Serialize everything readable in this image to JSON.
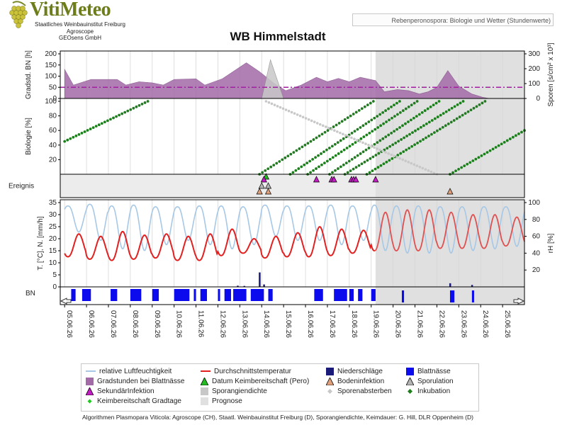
{
  "header": {
    "logo_name": "VitiMeteo",
    "institute_lines": [
      "Staatliches Weinbauinstitut Freiburg",
      "Agroscope",
      "GEOsens GmbH"
    ],
    "info_box": "Rebenperonospora: Biologie und Wetter (Stundenwerte)",
    "station": "WB Himmelstadt"
  },
  "footer": "Algorithmen Plasmopara Viticola: Agroscope (CH), Staatl. Weinbauinstitut Freiburg (D), Sporangiendichte, Keimdauer: G. Hill, DLR Oppenheim (D)",
  "colors": {
    "humidity": "#a6c8e6",
    "temperature": "#e32020",
    "rain": "#1a1a78",
    "leafwet": "#0b0bee",
    "gradstd": "#a36aa8",
    "sporangia": "#c8c8c8",
    "incubation": "#1e7e1e",
    "secondary": "#c41bc4",
    "soil": "#e0a07c",
    "sporulation": "#b4b4b4",
    "forecast": "#e0e0e0",
    "threshold": "#a020a0"
  },
  "legend": [
    {
      "key": "rh",
      "label": "relative Luftfeuchtigkeit"
    },
    {
      "key": "temp",
      "label": "Durchschnittstemperatur"
    },
    {
      "key": "rain",
      "label": "Niederschläge"
    },
    {
      "key": "leafwet",
      "label": "Blattnässe"
    },
    {
      "key": "gradstd",
      "label": "Gradstunden bei Blattnässe"
    },
    {
      "key": "keimdate",
      "label": "Datum Keimbereitschaft (Pero)"
    },
    {
      "key": "soil",
      "label": "Bodeninfektion"
    },
    {
      "key": "sporulation",
      "label": "Sporulation"
    },
    {
      "key": "secondary",
      "label": "SekundärInfektion"
    },
    {
      "key": "sporangia",
      "label": "Sporangiendichte"
    },
    {
      "key": "sporedeath",
      "label": "Sporenabsterben"
    },
    {
      "key": "incubation",
      "label": "Inkubation"
    },
    {
      "key": "keimgrad",
      "label": "Keimbereitschaft Gradtage"
    },
    {
      "key": "forecast",
      "label": "Prognose"
    }
  ],
  "chart_data": {
    "type": "line",
    "dates": [
      "05.06.26",
      "06.06.26",
      "07.06.26",
      "08.06.26",
      "09.06.26",
      "10.06.26",
      "11.06.26",
      "12.06.26",
      "13.06.26",
      "14.06.26",
      "15.06.26",
      "16.06.26",
      "17.06.26",
      "18.06.26",
      "19.06.26",
      "20.06.26",
      "21.06.26",
      "22.06.26",
      "23.06.26",
      "24.06.26",
      "25.06.26"
    ],
    "forecast_start_day": 18.2,
    "panels": {
      "gradstunden": {
        "ylabel_left": "Gradstd. BN [h]",
        "ylim_left": [
          0,
          200
        ],
        "ticks_left": [
          "0",
          "50",
          "100",
          "150",
          "200"
        ],
        "ylabel_right": "Sporen [s/cm² x 10³]",
        "ylim_right": [
          0,
          300
        ],
        "ticks_right": [
          "0",
          "100",
          "200",
          "300"
        ],
        "threshold": 50,
        "gradstunden_series": [
          [
            4.0,
            130
          ],
          [
            4.4,
            60
          ],
          [
            5.2,
            85
          ],
          [
            6.4,
            85
          ],
          [
            6.8,
            60
          ],
          [
            7.4,
            75
          ],
          [
            8.0,
            70
          ],
          [
            8.5,
            60
          ],
          [
            9.0,
            85
          ],
          [
            10.0,
            88
          ],
          [
            10.4,
            60
          ],
          [
            11.2,
            88
          ],
          [
            12.3,
            160
          ],
          [
            12.9,
            120
          ],
          [
            13.6,
            65
          ],
          [
            14.1,
            35
          ],
          [
            14.8,
            60
          ],
          [
            15.5,
            95
          ],
          [
            16.0,
            75
          ],
          [
            16.5,
            90
          ],
          [
            17.0,
            75
          ],
          [
            17.5,
            95
          ],
          [
            18.2,
            80
          ],
          [
            18.6,
            30
          ],
          [
            19.2,
            40
          ],
          [
            19.7,
            35
          ],
          [
            20.2,
            20
          ],
          [
            20.6,
            30
          ],
          [
            21.0,
            50
          ],
          [
            21.5,
            125
          ],
          [
            22.0,
            55
          ],
          [
            22.6,
            20
          ],
          [
            23.1,
            5
          ],
          [
            23.4,
            0
          ]
        ],
        "sporangia_series": [
          [
            13.0,
            0
          ],
          [
            13.4,
            260
          ],
          [
            14.0,
            0
          ]
        ]
      },
      "biologie": {
        "ylabel": "Biologie [%]",
        "ylim": [
          0,
          100
        ],
        "ticks": [
          "20",
          "40",
          "60",
          "80",
          "100"
        ],
        "incubation_lines": [
          {
            "start": [
              4.0,
              45
            ],
            "end": [
              7.8,
              100
            ]
          },
          {
            "start": [
              12.9,
              0
            ],
            "end": [
              18.1,
              100
            ]
          },
          {
            "start": [
              14.3,
              0
            ],
            "end": [
              19.3,
              100
            ]
          },
          {
            "start": [
              15.1,
              0
            ],
            "end": [
              20.1,
              100
            ]
          },
          {
            "start": [
              16.1,
              0
            ],
            "end": [
              21.1,
              100
            ]
          },
          {
            "start": [
              16.8,
              0
            ],
            "end": [
              22.2,
              100
            ]
          },
          {
            "start": [
              17.8,
              0
            ],
            "end": [
              23.2,
              100
            ]
          },
          {
            "start": [
              21.6,
              0
            ],
            "end": [
              25.0,
              60
            ]
          }
        ],
        "spore_death_line": {
          "start": [
            13.2,
            100
          ],
          "end": [
            21.0,
            0
          ]
        }
      },
      "ereignis": {
        "ylabel": "Ereignis",
        "secondary_infection_days": [
          13.1,
          15.5,
          16.2,
          16.3,
          17.1,
          17.2,
          17.3,
          18.2
        ],
        "sporulation_days": [
          13.0,
          13.3
        ],
        "soil_infection_days": [
          12.9,
          13.3,
          21.6
        ],
        "keimbereitschaft_days": [
          13.2
        ]
      },
      "wetter": {
        "ylabel_left": "T. [°C], N. [mm/h]",
        "ylim_left": [
          0,
          35
        ],
        "ticks_left": [
          "0",
          "5",
          "10",
          "15",
          "20",
          "25",
          "30",
          "35"
        ],
        "ylabel_right": "rH [%]",
        "ylim_right": [
          0,
          100
        ],
        "ticks_right": [
          "20",
          "40",
          "60",
          "80",
          "100"
        ],
        "temperature_min": [
          12.5,
          11.5,
          11,
          11.5,
          12,
          11,
          11,
          13,
          14,
          12,
          12.5,
          12.5,
          13,
          14,
          15,
          15,
          15,
          16,
          16,
          16,
          17
        ],
        "temperature_max": [
          22,
          21,
          23,
          21.5,
          22,
          21,
          22,
          24,
          20,
          21,
          22.5,
          25,
          24,
          23.5,
          31,
          32,
          32,
          31,
          30,
          30,
          29
        ],
        "humidity_min": [
          65,
          55,
          45,
          43,
          50,
          55,
          50,
          45,
          50,
          60,
          55,
          55,
          50,
          55,
          43,
          40,
          40,
          40,
          43,
          45,
          48
        ],
        "humidity_max": [
          96,
          98,
          96,
          97,
          95,
          95,
          96,
          96,
          95,
          97,
          96,
          96,
          97,
          96,
          97,
          96,
          96,
          95,
          95,
          95,
          95
        ],
        "rain_mm_h": [
          [
            11.9,
            0.5
          ],
          [
            12.2,
            0.4
          ],
          [
            12.9,
            6.0
          ],
          [
            13.1,
            1.0
          ],
          [
            21.6,
            1.5
          ],
          [
            22.6,
            0.8
          ]
        ]
      },
      "blattnaesse": {
        "label": "BN",
        "wet_intervals": [
          [
            4.3,
            4.5
          ],
          [
            4.8,
            5.2
          ],
          [
            6.1,
            6.4
          ],
          [
            7.0,
            7.5
          ],
          [
            8.0,
            8.3
          ],
          [
            9.0,
            9.7
          ],
          [
            9.9,
            10.0
          ],
          [
            10.2,
            10.5
          ],
          [
            11.0,
            11.1
          ],
          [
            11.3,
            11.6
          ],
          [
            11.7,
            12.3
          ],
          [
            12.5,
            13.1
          ],
          [
            13.3,
            13.5
          ],
          [
            15.4,
            15.8
          ],
          [
            16.3,
            16.9
          ],
          [
            17.0,
            17.2
          ],
          [
            17.4,
            17.6
          ],
          [
            18.0,
            18.2
          ],
          [
            19.4,
            19.5
          ],
          [
            21.6,
            21.8
          ],
          [
            22.6,
            22.7
          ]
        ]
      }
    }
  }
}
